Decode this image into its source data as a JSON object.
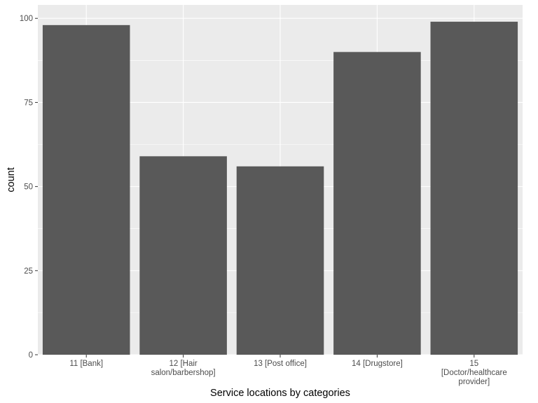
{
  "chart_data": {
    "type": "bar",
    "xlabel": "Service locations by categories",
    "ylabel": "count",
    "categories": [
      [
        "11 [Bank]"
      ],
      [
        "12 [Hair",
        "salon/barbershop]"
      ],
      [
        "13 [Post office]"
      ],
      [
        "14 [Drugstore]"
      ],
      [
        "15",
        "[Doctor/healthcare",
        "provider]"
      ]
    ],
    "values": [
      98,
      59,
      56,
      90,
      99
    ],
    "ylim": [
      0,
      104
    ],
    "yticks": [
      0,
      25,
      50,
      75,
      100
    ],
    "grid": true,
    "colors": {
      "panel": "#ebebeb",
      "bar": "#595959",
      "grid_major": "#ffffff",
      "tick_text": "#4d4d4d",
      "tick_mark": "#333333"
    }
  }
}
